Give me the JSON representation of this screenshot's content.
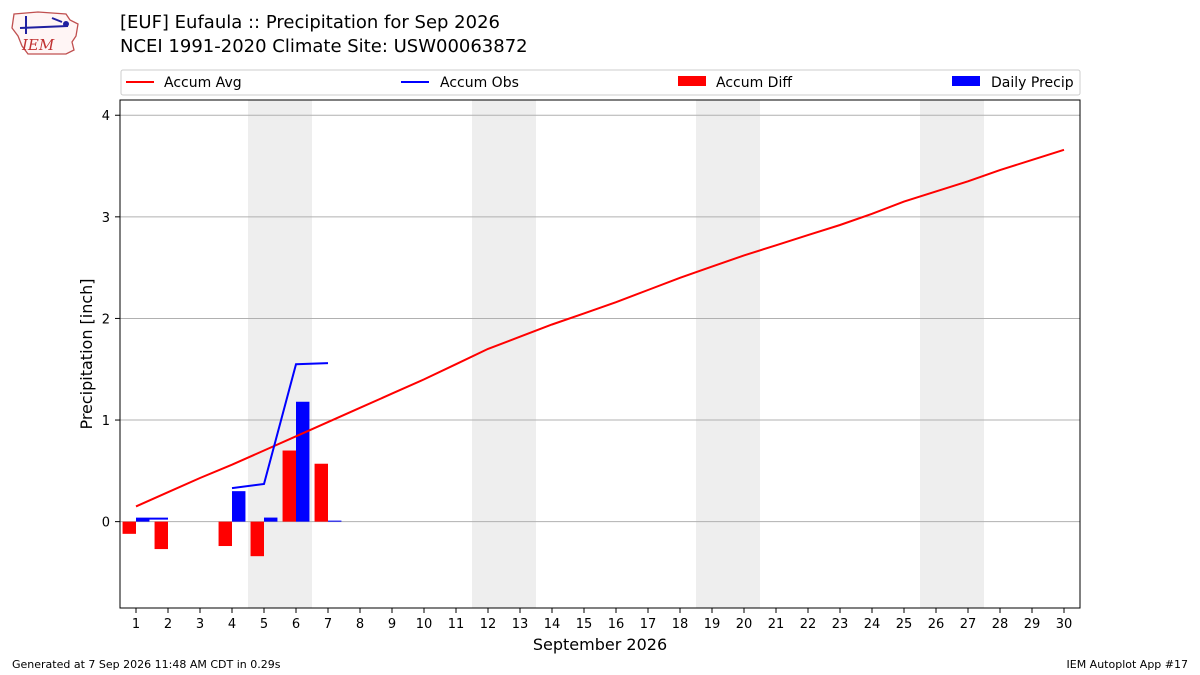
{
  "header": {
    "title_line1": "[EUF] Eufaula :: Precipitation for Sep 2026",
    "title_line2": "NCEI 1991-2020 Climate Site: USW00063872",
    "logo_text": "IEM"
  },
  "footer": {
    "generated": "Generated at 7 Sep 2026 11:48 AM CDT in 0.29s",
    "app": "IEM Autoplot App #17"
  },
  "colors": {
    "accum_avg": "#ff0000",
    "accum_obs": "#0000ff",
    "accum_diff": "#ff0000",
    "daily_precip": "#0000ff",
    "weekend_shade": "#eeeeee",
    "grid": "#b0b0b0"
  },
  "chart_data": {
    "type": "bar",
    "xlabel": "September 2026",
    "ylabel": "Precipitation [inch]",
    "xlim": [
      0.5,
      30.5
    ],
    "ylim": [
      -0.85,
      4.15
    ],
    "x_ticks": [
      "1",
      "2",
      "3",
      "4",
      "5",
      "6",
      "7",
      "8",
      "9",
      "10",
      "11",
      "12",
      "13",
      "14",
      "15",
      "16",
      "17",
      "18",
      "19",
      "20",
      "21",
      "22",
      "23",
      "24",
      "25",
      "26",
      "27",
      "28",
      "29",
      "30"
    ],
    "y_ticks": [
      0,
      1,
      2,
      3,
      4
    ],
    "grid": "horizontal",
    "legend_position": "top, above plot",
    "legend": [
      "Accum Avg",
      "Accum Obs",
      "Accum Diff",
      "Daily Precip"
    ],
    "weekend_shaded_days": [
      5,
      6,
      12,
      13,
      19,
      20,
      26,
      27
    ],
    "series": [
      {
        "name": "Accum Avg",
        "kind": "line",
        "x": [
          1,
          2,
          3,
          4,
          5,
          6,
          7,
          8,
          9,
          10,
          11,
          12,
          13,
          14,
          15,
          16,
          17,
          18,
          19,
          20,
          21,
          22,
          23,
          24,
          25,
          26,
          27,
          28,
          29,
          30
        ],
        "values": [
          0.15,
          0.29,
          0.43,
          0.56,
          0.7,
          0.84,
          0.98,
          1.12,
          1.26,
          1.4,
          1.55,
          1.7,
          1.82,
          1.94,
          2.05,
          2.16,
          2.28,
          2.4,
          2.51,
          2.62,
          2.72,
          2.82,
          2.92,
          3.03,
          3.15,
          3.25,
          3.35,
          3.46,
          3.56,
          3.66
        ]
      },
      {
        "name": "Accum Obs",
        "kind": "line",
        "x": [
          1,
          2,
          3,
          4,
          5,
          6,
          7
        ],
        "values": [
          0.03,
          0.03,
          null,
          0.33,
          0.37,
          1.55,
          1.56
        ]
      },
      {
        "name": "Accum Diff",
        "kind": "bar",
        "x": [
          1,
          2,
          3,
          4,
          5,
          6,
          7
        ],
        "values": [
          -0.12,
          -0.27,
          0,
          -0.24,
          -0.34,
          0.7,
          0.57
        ]
      },
      {
        "name": "Daily Precip",
        "kind": "bar",
        "x": [
          1,
          2,
          3,
          4,
          5,
          6,
          7
        ],
        "values": [
          0.03,
          0,
          0,
          0.3,
          0.04,
          1.18,
          0.01
        ]
      }
    ]
  }
}
